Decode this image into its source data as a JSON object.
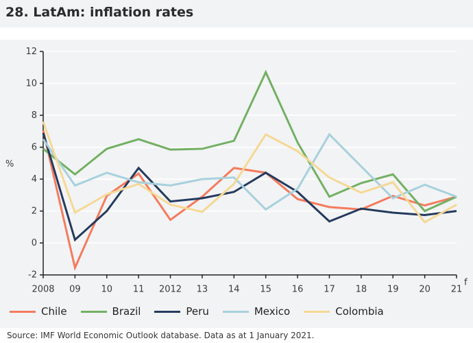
{
  "title": "28. LatAm: inflation rates",
  "source": "Source: IMF World Economic Outlook database. Data as at 1 January 2021.",
  "chart_data": {
    "type": "line",
    "ylabel": "%",
    "ylim": [
      -2,
      12
    ],
    "yticks": [
      -2,
      0,
      2,
      4,
      6,
      8,
      10,
      12
    ],
    "grid": true,
    "legend_placement": "bottom",
    "x": [
      2008,
      2009,
      2010,
      2011,
      2012,
      2013,
      2014,
      2015,
      2016,
      2017,
      2018,
      2019,
      2020,
      2021
    ],
    "xtick_labels": [
      "2008",
      "09",
      "10",
      "11",
      "2012",
      "13",
      "14",
      "15",
      "16",
      "17",
      "18",
      "19",
      "20",
      "21"
    ],
    "forecast_marker": "f",
    "series": [
      {
        "name": "Chile",
        "color": "#f47b5c",
        "values": [
          7.05,
          -1.55,
          2.95,
          4.35,
          1.45,
          2.9,
          4.7,
          4.4,
          2.75,
          2.25,
          2.1,
          2.95,
          2.35,
          2.9
        ]
      },
      {
        "name": "Brazil",
        "color": "#72b062",
        "values": [
          5.9,
          4.3,
          5.9,
          6.5,
          5.85,
          5.9,
          6.4,
          10.7,
          6.3,
          2.9,
          3.75,
          4.3,
          2.0,
          2.9
        ]
      },
      {
        "name": "Peru",
        "color": "#243a5e",
        "values": [
          6.9,
          0.2,
          2.0,
          4.7,
          2.6,
          2.8,
          3.2,
          4.4,
          3.2,
          1.35,
          2.15,
          1.9,
          1.75,
          2.0
        ]
      },
      {
        "name": "Mexico",
        "color": "#a7d1dc",
        "values": [
          6.5,
          3.6,
          4.4,
          3.8,
          3.6,
          4.0,
          4.1,
          2.1,
          3.4,
          6.8,
          4.8,
          2.8,
          3.65,
          2.9
        ]
      },
      {
        "name": "Colombia",
        "color": "#f5d895",
        "values": [
          7.6,
          1.9,
          3.05,
          3.7,
          2.4,
          1.95,
          3.7,
          6.8,
          5.75,
          4.1,
          3.15,
          3.8,
          1.3,
          2.4
        ]
      }
    ]
  }
}
